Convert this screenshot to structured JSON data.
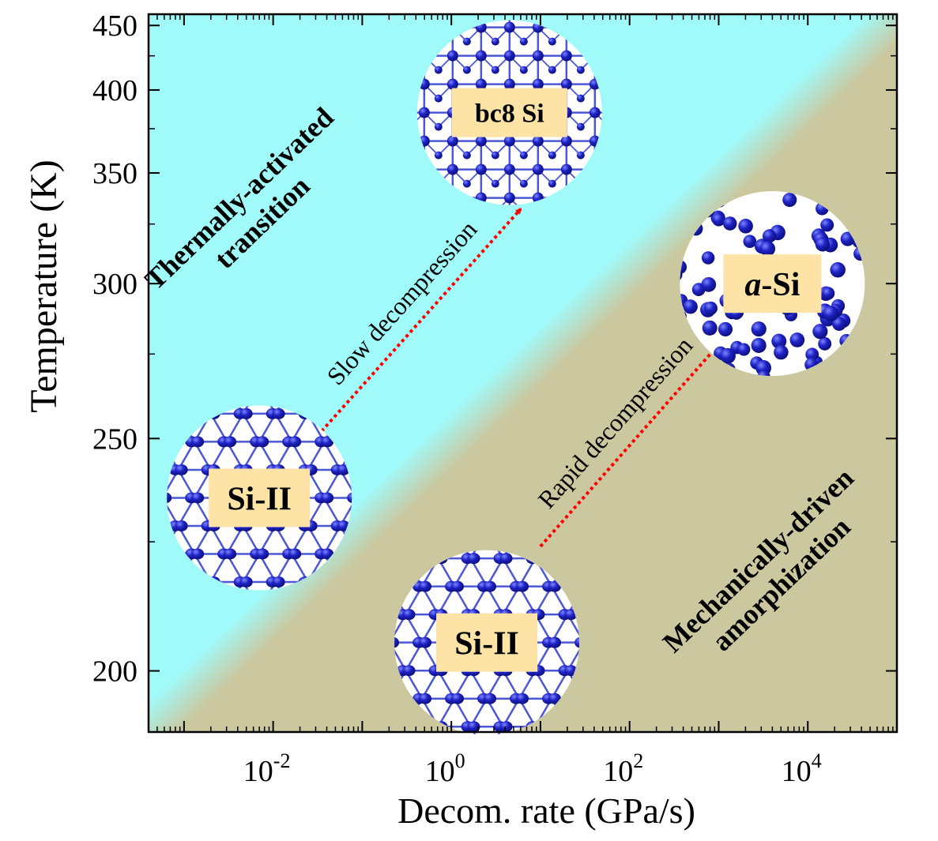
{
  "chart_data": {
    "type": "area",
    "title": "",
    "xlabel": "Decom. rate (GPa/s)",
    "ylabel": "Temperature (K)",
    "x_scale": "log",
    "y_scale": "reciprocal",
    "xlim": [
      0.0004,
      100000
    ],
    "ylim": [
      190,
      460
    ],
    "x_ticks": [
      {
        "base": "10",
        "exp": "-2",
        "value": 0.01
      },
      {
        "base": "10",
        "exp": "0",
        "value": 1
      },
      {
        "base": "10",
        "exp": "2",
        "value": 100
      },
      {
        "base": "10",
        "exp": "4",
        "value": 10000
      }
    ],
    "y_ticks": [
      {
        "label": "200",
        "value": 200
      },
      {
        "label": "250",
        "value": 250
      },
      {
        "label": "300",
        "value": 300
      },
      {
        "label": "350",
        "value": 350
      },
      {
        "label": "400",
        "value": 400
      },
      {
        "label": "450",
        "value": 450
      }
    ],
    "boundary": {
      "x": [
        0.0004,
        100000
      ],
      "y": [
        190,
        460
      ]
    },
    "regions": [
      {
        "label_lines": [
          "Thermally-activated",
          "transition"
        ],
        "color": "#a0fafa"
      },
      {
        "label_lines": [
          "Mechanically-driven",
          "amorphization"
        ],
        "color": "#cbc79e"
      }
    ],
    "transitions": [
      {
        "label": "Slow decompression",
        "from": "Si-II",
        "to": "bc8 Si",
        "x": [
          0.035,
          6
        ],
        "y": [
          252,
          332
        ],
        "color": "#ff0000"
      },
      {
        "label": "Rapid decompression",
        "from": "Si-II",
        "to": "a-Si",
        "x": [
          10,
          1300
        ],
        "y": [
          224,
          282
        ],
        "color": "#ff0000"
      }
    ],
    "phases": [
      {
        "label": "Si-II",
        "x": 0.007,
        "y": 235,
        "structure": "hexagonal"
      },
      {
        "label": "Si-II",
        "x": 2.5,
        "y": 205,
        "structure": "hexagonal"
      },
      {
        "label": "bc8 Si",
        "x": 4.5,
        "y": 385,
        "structure": "cubic"
      },
      {
        "label_prefix": "a",
        "label_suffix": "-Si",
        "x": 4000,
        "y": 300,
        "structure": "amorphous"
      }
    ],
    "legend": "none",
    "grid": false,
    "colors": {
      "region_hot": "#a0fafa",
      "region_cold": "#cbc79e",
      "atom": "#1e22c4",
      "atom_highlight": "#7c86ff",
      "bond": "#4c57d6",
      "label_box": "#fde3a6",
      "arrow": "#ff0000"
    }
  }
}
